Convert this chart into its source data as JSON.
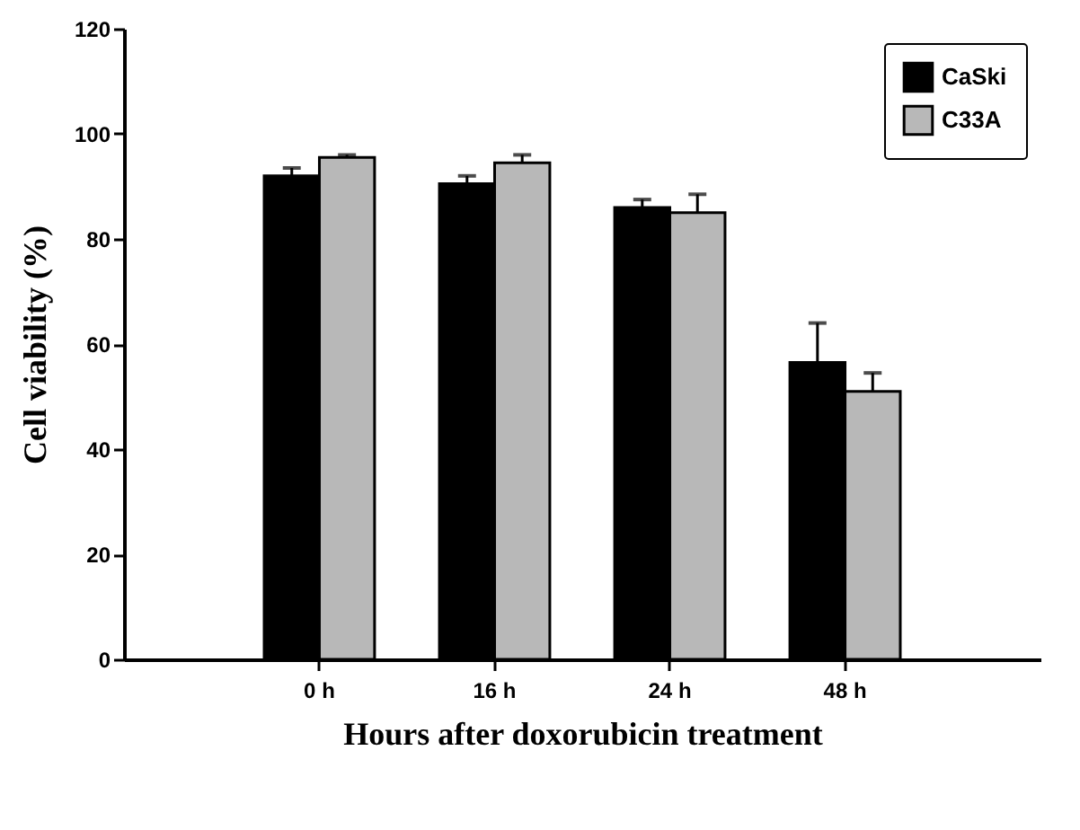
{
  "chart_data": {
    "type": "bar",
    "xlabel": "Hours after doxorubicin treatment",
    "ylabel": "Cell viability (%)",
    "categories": [
      "0 h",
      "16 h",
      "24 h",
      "48 h"
    ],
    "series": [
      {
        "name": "CaSki",
        "color": "#000000",
        "values": [
          92,
          90.5,
          86,
          56.5
        ],
        "errors": [
          [
            92,
            93.5
          ],
          [
            90.5,
            92
          ],
          [
            86,
            87.5
          ],
          [
            56.5,
            64
          ]
        ]
      },
      {
        "name": "C33A",
        "color": "#b8b8b8",
        "values": [
          95.5,
          94.5,
          85,
          51
        ],
        "errors": [
          [
            95.5,
            96
          ],
          [
            94.5,
            96
          ],
          [
            85,
            88.5
          ],
          [
            51,
            54.5
          ]
        ]
      }
    ],
    "ylim": [
      0,
      120
    ],
    "yticks": [
      0,
      20,
      40,
      60,
      80,
      100,
      120
    ],
    "grid": false,
    "legend": "top right"
  }
}
